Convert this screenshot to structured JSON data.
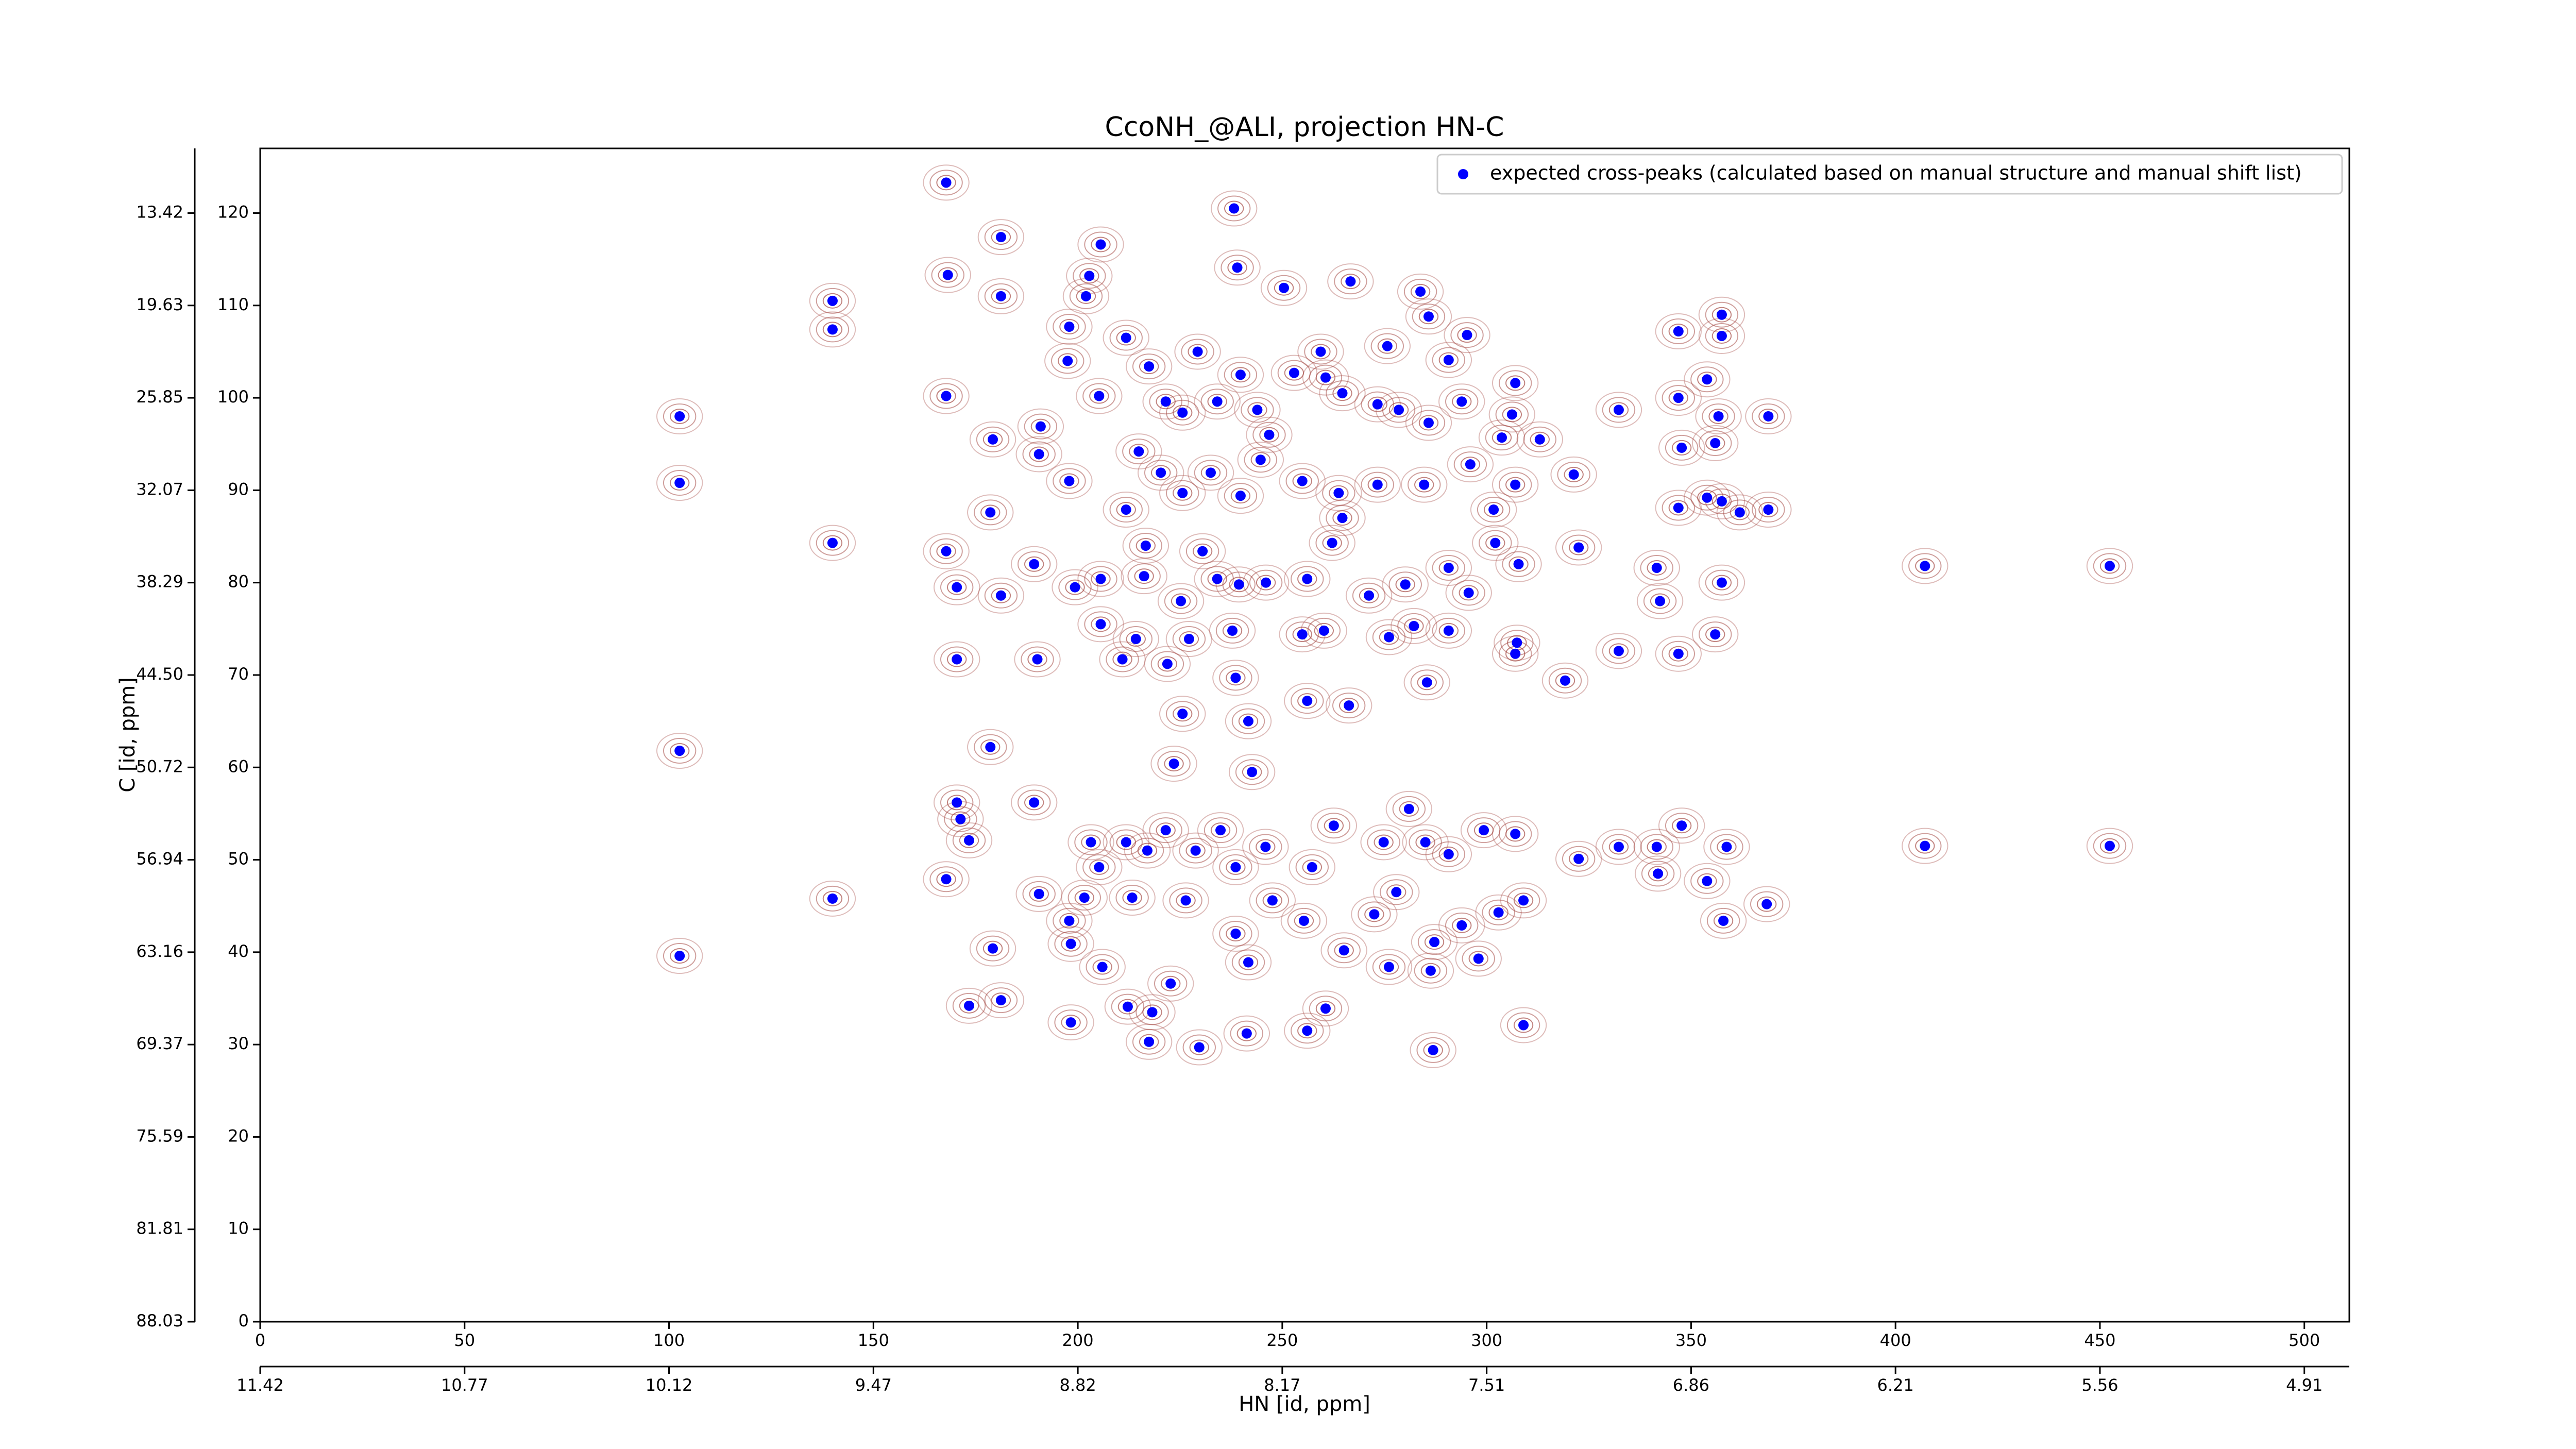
{
  "chart_data": {
    "type": "scatter",
    "title": "CcoNH_@ALI, projection HN-C",
    "x_label": "HN [id, ppm]",
    "y_label": "C [id, ppm]",
    "xlim": [
      0,
      511
    ],
    "ylim": [
      0,
      127
    ],
    "xticks": [
      0,
      50,
      100,
      150,
      200,
      250,
      300,
      350,
      400,
      450,
      500
    ],
    "yticks": [
      0,
      10,
      20,
      30,
      40,
      50,
      60,
      70,
      80,
      90,
      100,
      110,
      120
    ],
    "ppm_xticks": [
      {
        "value": 0,
        "label": "11.42"
      },
      {
        "value": 50,
        "label": "10.77"
      },
      {
        "value": 100,
        "label": "10.12"
      },
      {
        "value": 150,
        "label": "9.47"
      },
      {
        "value": 200,
        "label": "8.82"
      },
      {
        "value": 250,
        "label": "8.17"
      },
      {
        "value": 300,
        "label": "7.51"
      },
      {
        "value": 350,
        "label": "6.86"
      },
      {
        "value": 400,
        "label": "6.21"
      },
      {
        "value": 450,
        "label": "5.56"
      },
      {
        "value": 500,
        "label": "4.91"
      }
    ],
    "ppm_yticks": [
      {
        "value": 0,
        "label": "88.03"
      },
      {
        "value": 10,
        "label": "81.81"
      },
      {
        "value": 20,
        "label": "75.59"
      },
      {
        "value": 30,
        "label": "69.37"
      },
      {
        "value": 40,
        "label": "63.16"
      },
      {
        "value": 50,
        "label": "56.94"
      },
      {
        "value": 60,
        "label": "50.72"
      },
      {
        "value": 70,
        "label": "44.50"
      },
      {
        "value": 80,
        "label": "38.29"
      },
      {
        "value": 90,
        "label": "32.07"
      },
      {
        "value": 100,
        "label": "25.85"
      },
      {
        "value": 110,
        "label": "19.63"
      },
      {
        "value": 120,
        "label": "13.42"
      }
    ],
    "legend": "upper right",
    "series": [
      {
        "name": "expected cross-peaks (calculated based on manual structure and manual shift list)",
        "color": "#0000ff",
        "x": [
          167.8,
          181.2,
          205.6,
          238.2,
          239,
          168.2,
          181.2,
          140,
          140,
          202.8,
          202,
          197.9,
          197.5,
          250.4,
          266.7,
          283.8,
          285.8,
          295.2,
          290.7,
          346.9,
          357.5,
          357.5,
          102.6,
          167.8,
          179.2,
          190.9,
          190.5,
          205.2,
          211.8,
          217.4,
          221.5,
          225.6,
          229.3,
          234.1,
          239.8,
          243.9,
          246.8,
          252.9,
          259.4,
          260.6,
          264.7,
          275.7,
          273.3,
          278.5,
          285.8,
          293.9,
          307,
          306.2,
          303.7,
          313,
          332.3,
          346.9,
          353.9,
          356.7,
          355.9,
          368.9,
          347.7,
          321.3,
          102.6,
          178.6,
          197.9,
          214.9,
          211.8,
          220.3,
          225.6,
          232.5,
          239.8,
          244.7,
          254.9,
          263.8,
          264.7,
          273.3,
          284.7,
          296,
          301.7,
          307,
          346.9,
          353.9,
          361.9,
          368.9,
          357.5,
          140,
          167.8,
          170.4,
          181.2,
          189.3,
          199.3,
          205.6,
          216.6,
          216.2,
          225.2,
          230.5,
          234.1,
          239.4,
          246,
          256.1,
          262.2,
          271.2,
          280.1,
          282.2,
          290.7,
          295.6,
          302.1,
          307.8,
          322.5,
          341.6,
          342.4,
          357.5,
          407.2,
          452.4,
          170.4,
          190.1,
          205.6,
          210.9,
          214.2,
          221.9,
          227.2,
          237.8,
          238.6,
          254.9,
          260.2,
          266.3,
          276.1,
          285.4,
          290.7,
          307.4,
          307,
          319.2,
          332.3,
          346.9,
          355.9,
          225.6,
          241.7,
          256.1,
          102.6,
          178.6,
          223.5,
          242.6,
          189.3,
          170.4,
          171.3,
          173.4,
          167.8,
          140,
          203.2,
          205.2,
          211.8,
          217,
          221.5,
          228.8,
          234.9,
          238.6,
          245.9,
          257.3,
          262.6,
          274.8,
          281,
          285,
          290.7,
          299.3,
          307,
          322.5,
          332.3,
          341.6,
          341.9,
          347.7,
          358.7,
          368.5,
          407.2,
          452.4,
          353.9,
          190.5,
          197.9,
          198.3,
          201.6,
          213.3,
          226.4,
          238.6,
          247.6,
          255.3,
          265.1,
          272.5,
          277.9,
          287.2,
          293.9,
          302.9,
          309,
          357.9,
          102.6,
          179.2,
          206,
          222.7,
          241.7,
          276.1,
          286.3,
          298,
          173.4,
          181.2,
          198.3,
          212.2,
          218.2,
          217.4,
          229.7,
          241.3,
          256.1,
          260.6,
          286.9,
          309
        ],
        "values": [
          123.3,
          117.4,
          116.6,
          120.5,
          114.1,
          113.3,
          111,
          110.5,
          107.4,
          113.2,
          111,
          107.7,
          104,
          111.9,
          112.6,
          111.5,
          108.8,
          106.8,
          104.1,
          107.2,
          109,
          106.7,
          98,
          100.2,
          95.5,
          96.9,
          93.9,
          100.2,
          106.5,
          103.4,
          99.6,
          98.4,
          105,
          99.6,
          102.5,
          98.7,
          96,
          102.7,
          105,
          102.2,
          100.5,
          105.6,
          99.3,
          98.7,
          97.3,
          99.6,
          101.6,
          98.2,
          95.7,
          95.5,
          98.7,
          100,
          102,
          98,
          95.1,
          98,
          94.6,
          91.7,
          90.8,
          87.6,
          91,
          94.2,
          87.9,
          91.9,
          89.7,
          91.9,
          89.4,
          93.3,
          91,
          89.7,
          87,
          90.6,
          90.6,
          92.8,
          87.9,
          90.6,
          88.1,
          89.2,
          87.6,
          87.9,
          88.8,
          84.3,
          83.4,
          79.5,
          78.6,
          82,
          79.5,
          80.4,
          84,
          80.7,
          78,
          83.4,
          80.4,
          79.8,
          80,
          80.4,
          84.3,
          78.6,
          79.8,
          75.3,
          81.6,
          78.9,
          84.3,
          82,
          83.8,
          81.6,
          78,
          80,
          81.8,
          81.8,
          71.7,
          71.7,
          75.5,
          71.7,
          73.9,
          71.2,
          73.9,
          74.8,
          69.7,
          74.4,
          74.8,
          66.7,
          74.1,
          69.2,
          74.8,
          73.5,
          72.3,
          69.4,
          72.6,
          72.3,
          74.4,
          65.8,
          65,
          67.2,
          61.8,
          62.2,
          60.4,
          59.5,
          56.2,
          56.2,
          54.4,
          52.1,
          47.9,
          45.8,
          51.9,
          49.2,
          51.9,
          51,
          53.2,
          51,
          53.2,
          49.2,
          51.4,
          49.2,
          53.7,
          51.9,
          55.5,
          51.9,
          50.6,
          53.2,
          52.8,
          50.1,
          51.4,
          51.4,
          48.5,
          53.7,
          51.4,
          45.2,
          51.5,
          51.5,
          47.7,
          46.3,
          43.4,
          40.9,
          45.9,
          45.9,
          45.6,
          42,
          45.6,
          43.4,
          40.2,
          44.1,
          46.5,
          41.1,
          42.9,
          44.3,
          45.6,
          43.4,
          39.6,
          40.4,
          38.4,
          36.6,
          38.9,
          38.4,
          38,
          39.3,
          34.2,
          34.8,
          32.4,
          34.1,
          33.5,
          30.3,
          29.7,
          31.2,
          31.5,
          33.9,
          29.4,
          32.1
        ]
      }
    ]
  }
}
